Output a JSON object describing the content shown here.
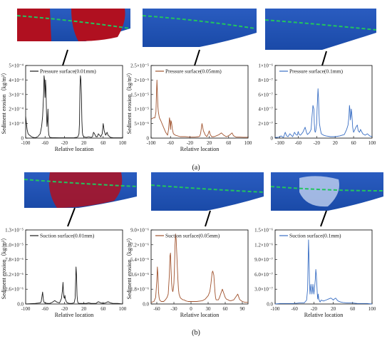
{
  "figure": {
    "panel_labels": [
      "(a)",
      "(b)"
    ]
  },
  "colors": {
    "black_series": "#1a1a1a",
    "brown_series": "#a0522d",
    "blue_series": "#3a6fc4",
    "blade_blue": "#1f4fb0",
    "erosion_red": "#b01020",
    "flow_line_green": "#22c55e"
  },
  "chart_data": [
    {
      "type": "line",
      "row": "a",
      "legend": "Pressure surface(0.01mm)",
      "xlabel": "Relative location",
      "ylabel": "Sediment erosion（kg/m²）",
      "xlim": [
        -100,
        100
      ],
      "ylim": [
        0,
        0.0005
      ],
      "xticks": [
        "-100",
        "-60",
        "-20",
        "20",
        "60",
        "100"
      ],
      "yticks": [
        {
          "v": 0,
          "t": "0"
        },
        {
          "v": 0.0001,
          "t": "1×10⁻⁴"
        },
        {
          "v": 0.0002,
          "t": "2×10⁻⁴"
        },
        {
          "v": 0.0003,
          "t": "3×10⁻⁴"
        },
        {
          "v": 0.0004,
          "t": "4×10⁻⁴"
        },
        {
          "v": 0.0005,
          "t": "5×10⁻⁴"
        }
      ],
      "legend_pos": "top-left",
      "x": [
        -100,
        -97,
        -95,
        -92,
        -88,
        -85,
        -80,
        -75,
        -70,
        -67,
        -65,
        -63,
        -62,
        -61,
        -60,
        -59,
        -58,
        -57,
        -56,
        -55,
        -54,
        -53,
        -52,
        -50,
        -45,
        -40,
        -30,
        -20,
        -10,
        -5,
        0,
        5,
        8,
        10,
        11,
        12,
        13,
        14,
        15,
        16,
        17,
        18,
        20,
        25,
        30,
        35,
        38,
        40,
        42,
        45,
        48,
        50,
        55,
        58,
        60,
        62,
        65,
        68,
        70,
        75,
        80,
        90,
        100
      ],
      "y": [
        0.00015,
        6e-05,
        3e-05,
        2e-05,
        1e-05,
        5e-06,
        3e-06,
        1e-05,
        3e-05,
        8e-05,
        0.00015,
        0.0003,
        0.00043,
        0.0004,
        0.00028,
        0.0004,
        0.00032,
        0.00018,
        8e-05,
        0.00012,
        0.0002,
        5e-05,
        2e-05,
        5e-06,
        3e-06,
        3e-06,
        2e-06,
        2e-06,
        2e-06,
        2e-06,
        3e-06,
        5e-06,
        1e-05,
        3e-05,
        0.0001,
        0.00035,
        0.00043,
        0.0004,
        0.0003,
        0.00012,
        4e-05,
        2e-05,
        1e-05,
        5e-06,
        1e-05,
        5e-06,
        1e-05,
        4e-05,
        3e-05,
        1e-05,
        1e-05,
        3e-05,
        1e-05,
        3e-05,
        0.0001,
        5e-05,
        2e-05,
        4e-05,
        2e-05,
        5e-06,
        3e-06,
        2e-06,
        2e-06
      ]
    },
    {
      "type": "line",
      "row": "a",
      "legend": "Pressure surface(0.05mm)",
      "xlabel": "Relative location",
      "ylabel": "Sediment erosion（kg/m²）",
      "xlim": [
        -100,
        100
      ],
      "ylim": [
        0,
        2.5e-05
      ],
      "xticks": [
        "-100",
        "-60",
        "-20",
        "20",
        "60",
        "100"
      ],
      "yticks": [
        {
          "v": 0,
          "t": "0"
        },
        {
          "v": 5e-06,
          "t": "5×10⁻⁶"
        },
        {
          "v": 1e-05,
          "t": "1×10⁻⁵"
        },
        {
          "v": 1.5e-05,
          "t": "1.5×10⁻⁵"
        },
        {
          "v": 2e-05,
          "t": "2×10⁻⁵"
        },
        {
          "v": 2.5e-05,
          "t": "2.5×10⁻⁵"
        }
      ],
      "legend_pos": "top",
      "x": [
        -100,
        -97,
        -95,
        -92,
        -90,
        -89,
        -88,
        -87,
        -86,
        -85,
        -83,
        -80,
        -75,
        -70,
        -66,
        -64,
        -62,
        -61,
        -60,
        -59,
        -58,
        -56,
        -54,
        -50,
        -40,
        -30,
        -20,
        -10,
        -2,
        0,
        2,
        5,
        8,
        12,
        15,
        18,
        20,
        22,
        25,
        30,
        35,
        40,
        45,
        50,
        55,
        60,
        63,
        67,
        70,
        75,
        80,
        90,
        100
      ],
      "y": [
        6.5e-06,
        6.8e-06,
        7e-06,
        7e-06,
        9e-06,
        1.5e-05,
        2e-05,
        1.6e-05,
        1.1e-05,
        9e-06,
        7e-06,
        6e-06,
        4e-06,
        2e-06,
        1e-06,
        3e-06,
        7e-06,
        5.8e-06,
        3e-06,
        6e-06,
        5.5e-06,
        3e-06,
        1.5e-06,
        1e-06,
        5e-07,
        5e-07,
        4e-07,
        4e-07,
        5e-07,
        6e-07,
        1.5e-06,
        5e-06,
        2.5e-06,
        1e-06,
        5e-07,
        1.5e-06,
        2.5e-06,
        1.2e-06,
        5e-07,
        5e-07,
        8e-07,
        1.2e-06,
        1.8e-06,
        1e-06,
        5e-07,
        8e-07,
        1.2e-06,
        1.8e-06,
        8e-07,
        4e-07,
        4e-07,
        3e-07,
        3e-07
      ]
    },
    {
      "type": "line",
      "row": "a",
      "legend": "Pressure surface(0.1mm)",
      "xlabel": "",
      "ylabel": "",
      "xlim": [
        -110,
        100
      ],
      "ylim": [
        0,
        1e-06
      ],
      "xticks": [
        "-100",
        "-60",
        "-20",
        "20",
        "60",
        "100"
      ],
      "yticks": [
        {
          "v": 0,
          "t": "0"
        },
        {
          "v": 2e-07,
          "t": "2×10⁻⁷"
        },
        {
          "v": 4e-07,
          "t": "4×10⁻⁷"
        },
        {
          "v": 6e-07,
          "t": "6×10⁻⁷"
        },
        {
          "v": 8e-07,
          "t": "8×10⁻⁷"
        },
        {
          "v": 1e-06,
          "t": "1×10⁻⁶"
        }
      ],
      "legend_pos": "top-left",
      "x": [
        -110,
        -105,
        -100,
        -97,
        -95,
        -92,
        -88,
        -85,
        -82,
        -78,
        -75,
        -72,
        -68,
        -65,
        -62,
        -60,
        -58,
        -55,
        -50,
        -45,
        -42,
        -40,
        -38,
        -35,
        -32,
        -30,
        -28,
        -26,
        -25,
        -24,
        -23,
        -22,
        -21,
        -20,
        -19,
        -18,
        -17,
        -16,
        -15,
        -14,
        -12,
        -10,
        -5,
        0,
        10,
        20,
        30,
        40,
        45,
        48,
        50,
        51,
        52,
        53,
        54,
        55,
        56,
        57,
        58,
        60,
        63,
        65,
        68,
        70,
        73,
        75,
        80,
        85,
        90,
        95,
        100
      ],
      "y": [
        1e-08,
        1e-08,
        2e-08,
        3e-08,
        2e-08,
        1e-08,
        8e-08,
        3e-08,
        2e-08,
        6e-08,
        4e-08,
        2e-08,
        8e-08,
        5e-08,
        4e-08,
        9e-08,
        5e-08,
        4e-08,
        8e-08,
        1.5e-07,
        8e-08,
        5e-08,
        6e-08,
        8e-08,
        1.2e-07,
        3e-07,
        4.5e-07,
        4e-07,
        2e-07,
        1e-07,
        8e-08,
        1e-07,
        1.5e-07,
        2e-07,
        4e-07,
        5.5e-07,
        6.8e-07,
        5.5e-07,
        3.5e-07,
        2e-07,
        1.2e-07,
        6e-08,
        4e-08,
        3e-08,
        2e-08,
        2e-08,
        3e-08,
        5e-08,
        1.2e-07,
        1.8e-07,
        3e-07,
        4.5e-07,
        4e-07,
        2.5e-07,
        3e-07,
        4e-07,
        3.5e-07,
        2.5e-07,
        1.5e-07,
        8e-08,
        1.2e-07,
        1.5e-07,
        1.8e-07,
        1e-07,
        8e-08,
        1.2e-07,
        6e-08,
        4e-08,
        6e-08,
        3e-08,
        2e-08
      ]
    },
    {
      "type": "line",
      "row": "b",
      "legend": "Suction surface(0.01mm)",
      "xlabel": "Relative location",
      "ylabel": "Sediment erosion（kg/m²）",
      "xlim": [
        -100,
        100
      ],
      "ylim": [
        0,
        1.3e-05
      ],
      "xticks": [
        "-100",
        "-60",
        "-20",
        "20",
        "60",
        "100"
      ],
      "yticks": [
        {
          "v": 0,
          "t": "0.0"
        },
        {
          "v": 2.6e-06,
          "t": "2.6×10⁻⁶"
        },
        {
          "v": 5.2e-06,
          "t": "5.2×10⁻⁶"
        },
        {
          "v": 7.8e-06,
          "t": "7.8×10⁻⁶"
        },
        {
          "v": 1.04e-05,
          "t": "1.0×10⁻⁵"
        },
        {
          "v": 1.3e-05,
          "t": "1.3×10⁻⁵"
        }
      ],
      "legend_pos": "top-left",
      "x": [
        -100,
        -90,
        -80,
        -70,
        -68,
        -66,
        -65,
        -64,
        -63,
        -62,
        -60,
        -55,
        -50,
        -45,
        -40,
        -35,
        -30,
        -26,
        -24,
        -23,
        -22,
        -21,
        -20,
        -19,
        -18,
        -16,
        -14,
        -10,
        -5,
        0,
        2,
        3,
        4,
        5,
        6,
        7,
        8,
        10,
        15,
        20,
        25,
        30,
        35,
        40,
        45,
        50,
        55,
        60,
        65,
        70,
        75,
        80,
        90,
        100
      ],
      "y": [
        0,
        5e-08,
        1e-07,
        2e-07,
        4e-07,
        1.5e-06,
        2.1e-06,
        1.2e-06,
        5e-07,
        3e-07,
        2e-07,
        1e-07,
        1e-07,
        3e-07,
        6e-07,
        3e-07,
        2e-07,
        1e-06,
        2.5e-06,
        3.8e-06,
        2.2e-06,
        1.2e-06,
        1e-06,
        1.5e-06,
        8e-07,
        4e-07,
        2e-07,
        1e-07,
        1e-07,
        2e-07,
        1e-06,
        3.5e-06,
        6.5e-06,
        5e-06,
        1.5e-06,
        5e-07,
        2e-07,
        1e-07,
        1e-07,
        1e-07,
        1e-07,
        2e-07,
        1e-07,
        1e-07,
        1e-07,
        4e-07,
        2e-07,
        1e-07,
        2e-07,
        4e-07,
        2e-07,
        1e-07,
        1e-07,
        0
      ]
    },
    {
      "type": "line",
      "row": "b",
      "legend": "Suction surface(0.05mm)",
      "xlabel": "Relative location",
      "ylabel": "Sediment erosion（kg/m²）",
      "xlim": [
        -70,
        100
      ],
      "ylim": [
        0,
        9e-06
      ],
      "xticks": [
        "-60",
        "-30",
        "0",
        "30",
        "60",
        "90"
      ],
      "yticks": [
        {
          "v": 0,
          "t": "0.0"
        },
        {
          "v": 1.8e-06,
          "t": "1.8×10⁻⁶"
        },
        {
          "v": 3.6e-06,
          "t": "3.6×10⁻⁶"
        },
        {
          "v": 5.4e-06,
          "t": "5.4×10⁻⁶"
        },
        {
          "v": 7.2e-06,
          "t": "7.2×10⁻⁶"
        },
        {
          "v": 9e-06,
          "t": "9.0×10⁻⁶"
        }
      ],
      "legend_pos": "top",
      "x": [
        -70,
        -65,
        -62,
        -60,
        -59,
        -58,
        -57,
        -56,
        -55,
        -54,
        -52,
        -50,
        -48,
        -45,
        -42,
        -40,
        -38,
        -37,
        -36,
        -35,
        -34,
        -33,
        -32,
        -31,
        -30,
        -29,
        -28,
        -27,
        -26,
        -25,
        -24,
        -23,
        -22,
        -21,
        -20,
        -19,
        -18,
        -16,
        -14,
        -12,
        -10,
        -5,
        0,
        10,
        20,
        25,
        30,
        33,
        35,
        37,
        38,
        39,
        40,
        41,
        42,
        43,
        44,
        45,
        48,
        50,
        52,
        55,
        58,
        60,
        62,
        65,
        68,
        70,
        75,
        78,
        80,
        82,
        84,
        85,
        86,
        88,
        90,
        95,
        100
      ],
      "y": [
        2e-07,
        3e-07,
        8e-07,
        2.8e-06,
        4.5e-06,
        3.5e-06,
        1.5e-06,
        8e-07,
        5e-07,
        4e-07,
        3e-07,
        3e-07,
        3e-07,
        5e-07,
        8e-07,
        1.2e-06,
        3.5e-06,
        5.8e-06,
        6.2e-06,
        4.2e-06,
        2.5e-06,
        1.8e-06,
        1.5e-06,
        1.8e-06,
        2.5e-06,
        4.5e-06,
        7.2e-06,
        8.5e-06,
        7.8e-06,
        6.2e-06,
        4.5e-06,
        3e-06,
        1.8e-06,
        1.2e-06,
        1e-06,
        8e-07,
        7e-07,
        6e-07,
        5e-07,
        5e-07,
        4e-07,
        3e-07,
        3e-07,
        3e-07,
        4e-07,
        6e-07,
        1e-06,
        1.5e-06,
        2.5e-06,
        3.8e-06,
        4e-06,
        3.8e-06,
        3.5e-06,
        2.5e-06,
        1.5e-06,
        8e-07,
        5e-07,
        5e-07,
        5e-07,
        8e-07,
        1.2e-06,
        1.8e-06,
        1.2e-06,
        8e-07,
        6e-07,
        5e-07,
        4e-07,
        4e-07,
        5e-07,
        8e-07,
        1e-06,
        1.2e-06,
        8e-07,
        6e-07,
        5e-07,
        4e-07,
        3e-07,
        2e-07,
        2e-07
      ]
    },
    {
      "type": "line",
      "row": "b",
      "legend": "Suction surface(0.1mm)",
      "xlabel": "Relative location",
      "ylabel": "",
      "xlim": [
        -100,
        100
      ],
      "ylim": [
        0,
        1.5e-06
      ],
      "xticks": [
        "-100",
        "-60",
        "-20",
        "20",
        "60",
        "100"
      ],
      "yticks": [
        {
          "v": 0,
          "t": "0.0"
        },
        {
          "v": 3e-07,
          "t": "3.0×10⁻⁷"
        },
        {
          "v": 6e-07,
          "t": "6.0×10⁻⁷"
        },
        {
          "v": 9e-07,
          "t": "9.0×10⁻⁷"
        },
        {
          "v": 1.2e-06,
          "t": "1.2×10⁻⁶"
        },
        {
          "v": 1.5e-06,
          "t": "1.5×10⁻⁶"
        }
      ],
      "legend_pos": "top-left",
      "x": [
        -100,
        -90,
        -80,
        -70,
        -60,
        -50,
        -40,
        -35,
        -33,
        -32,
        -31,
        -30,
        -29,
        -28,
        -27,
        -26,
        -25,
        -24,
        -23,
        -22,
        -21,
        -20,
        -19,
        -18,
        -17,
        -16,
        -15,
        -14,
        -13,
        -12,
        -11,
        -10,
        -9,
        -8,
        -7,
        -6,
        -5,
        -3,
        0,
        5,
        10,
        15,
        18,
        20,
        22,
        25,
        28,
        30,
        35,
        40,
        50,
        60,
        70,
        80,
        90,
        100
      ],
      "y": [
        0,
        1e-08,
        1e-08,
        1e-08,
        1e-08,
        2e-08,
        2e-08,
        8e-08,
        3e-07,
        8e-07,
        1.3e-06,
        9e-07,
        4e-07,
        2e-07,
        3e-07,
        4e-07,
        3e-07,
        2e-07,
        3e-07,
        4e-07,
        3e-07,
        2e-07,
        3e-07,
        4e-07,
        5e-07,
        7e-07,
        6e-07,
        4e-07,
        2e-07,
        1e-07,
        2e-07,
        1e-07,
        8e-08,
        5e-08,
        4e-08,
        6e-08,
        8e-08,
        7e-08,
        6e-08,
        8e-08,
        1e-07,
        1.2e-07,
        1e-07,
        8e-08,
        1e-07,
        1.2e-07,
        8e-08,
        6e-08,
        4e-08,
        3e-08,
        2e-08,
        2e-08,
        1e-08,
        1e-08,
        1e-08,
        0
      ]
    }
  ]
}
